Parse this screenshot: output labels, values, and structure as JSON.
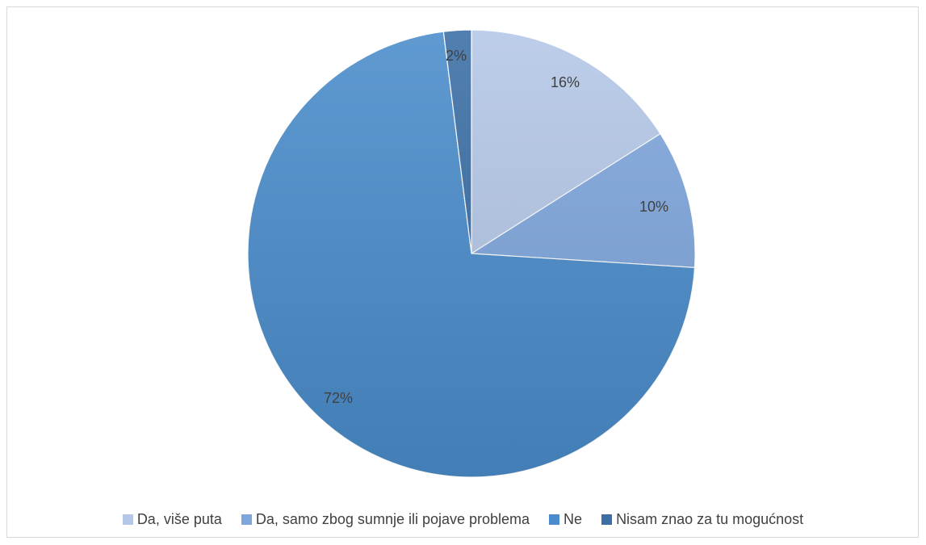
{
  "chart_data": {
    "type": "pie",
    "categories": [
      "Da, više puta",
      "Da, samo zbog sumnje ili pojave problema",
      "Ne",
      "Nisam znao za tu mogućnost"
    ],
    "values": [
      16,
      10,
      72,
      2
    ],
    "value_labels": [
      "16%",
      "10%",
      "72%",
      "2%"
    ],
    "colors": [
      "#b4c7e7",
      "#7ea6dc",
      "#4a8ccb",
      "#3a6ea5"
    ],
    "start_angle_deg": 0,
    "direction": "clockwise",
    "legend_position": "bottom"
  }
}
